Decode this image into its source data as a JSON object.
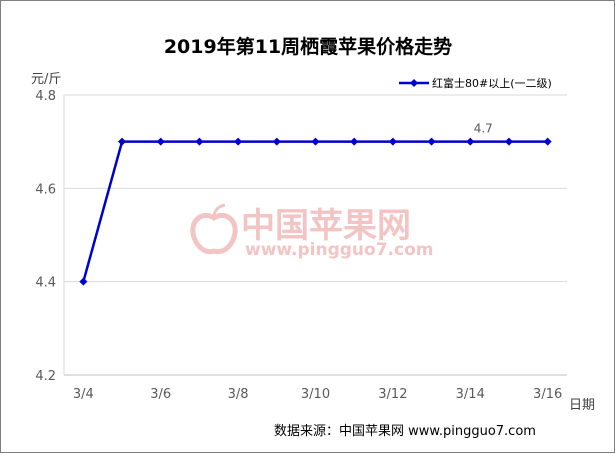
{
  "chart_data": {
    "type": "line",
    "title": "2019年第11周栖霞苹果价格走势",
    "ylabel": "元/斤",
    "xlabel": "日期",
    "ylim": [
      4.2,
      4.8
    ],
    "yticks": [
      "4.2",
      "4.4",
      "4.6",
      "4.8"
    ],
    "xticks": [
      "3/4",
      "3/6",
      "3/8",
      "3/10",
      "3/12",
      "3/14",
      "3/16"
    ],
    "x": [
      "3/4",
      "3/5",
      "3/6",
      "3/7",
      "3/8",
      "3/9",
      "3/10",
      "3/11",
      "3/12",
      "3/13",
      "3/14",
      "3/15",
      "3/16"
    ],
    "series": [
      {
        "name": "红富士80#以上(一二级)",
        "color": "#0000cc",
        "values": [
          4.4,
          4.7,
          4.7,
          4.7,
          4.7,
          4.7,
          4.7,
          4.7,
          4.7,
          4.7,
          4.7,
          4.7,
          4.7
        ]
      }
    ],
    "annotations": [
      {
        "x": "3/14",
        "text": "4.7"
      }
    ],
    "grid": "horizontal",
    "legend": "top-right",
    "source": "数据来源：中国苹果网 www.pingguo7.com",
    "watermark": {
      "text": "中国苹果网",
      "url": "www.pingguo7.com",
      "icon": "apple-logo-icon"
    }
  }
}
